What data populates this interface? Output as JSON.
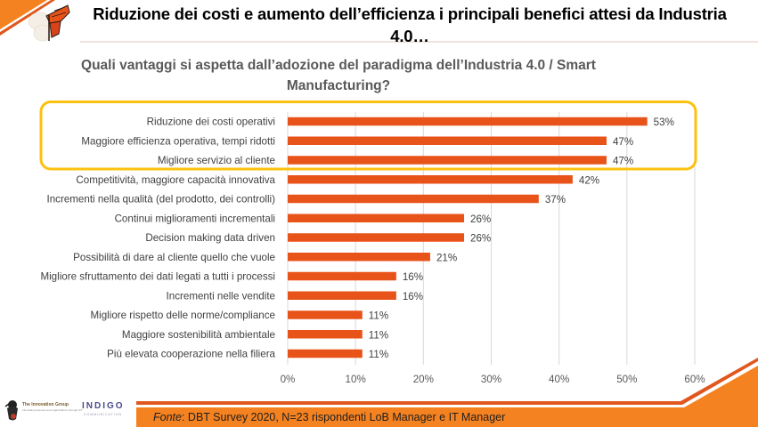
{
  "header": {
    "title": "Riduzione dei costi e aumento dell’efficienza i principali benefici attesi da Industria 4.0…",
    "logo_icon": "butterfly-icon"
  },
  "colors": {
    "bar": "#e8531a",
    "highlight_box": "#fcc10f",
    "gridline": "#d9d9d9",
    "brand_orange": "#f58220",
    "brand_dark_orange": "#e0581e"
  },
  "chart_data": {
    "type": "bar",
    "orientation": "horizontal",
    "title": "Quali vantaggi si aspetta dall’adozione del paradigma dell’Industria 4.0 / Smart Manufacturing?",
    "xlabel": "",
    "ylabel": "",
    "xlim": [
      0,
      60
    ],
    "grid": true,
    "legend": "none",
    "tick_labels": [
      "0%",
      "10%",
      "20%",
      "30%",
      "40%",
      "50%",
      "60%"
    ],
    "ticks": [
      0,
      10,
      20,
      30,
      40,
      50,
      60
    ],
    "categories": [
      "Riduzione dei costi operativi",
      "Maggiore efficienza operativa, tempi ridotti",
      "Migliore servizio al cliente",
      "Competitività, maggiore capacità innovativa",
      "Incrementi nella qualità (del prodotto, dei controlli)",
      "Continui miglioramenti incrementali",
      "Decision making data driven",
      "Possibilità di dare al cliente quello che vuole",
      "Migliore sfruttamento dei dati legati a tutti i processi",
      "Incrementi nelle vendite",
      "Migliore rispetto delle norme/compliance",
      "Maggiore sostenibilità ambientale",
      "Più elevata cooperazione nella filiera"
    ],
    "values": [
      53,
      47,
      47,
      42,
      37,
      26,
      26,
      21,
      16,
      16,
      11,
      11,
      11
    ],
    "value_labels": [
      "53%",
      "47%",
      "47%",
      "42%",
      "37%",
      "26%",
      "26%",
      "21%",
      "16%",
      "16%",
      "11%",
      "11%",
      "11%"
    ],
    "highlighted_categories": [
      0,
      1,
      2
    ]
  },
  "footer": {
    "source_label": "Fonte",
    "source_text": ": DBT Survey 2020, N=23 rispondenti LoB Manager e IT Manager",
    "logos": {
      "innovation_group": "The Innovation Group",
      "innovation_group_tagline": "Innovating business and organizations through ICT",
      "indigo": "INDIGO",
      "indigo_sub": "COMMUNICATION"
    }
  }
}
